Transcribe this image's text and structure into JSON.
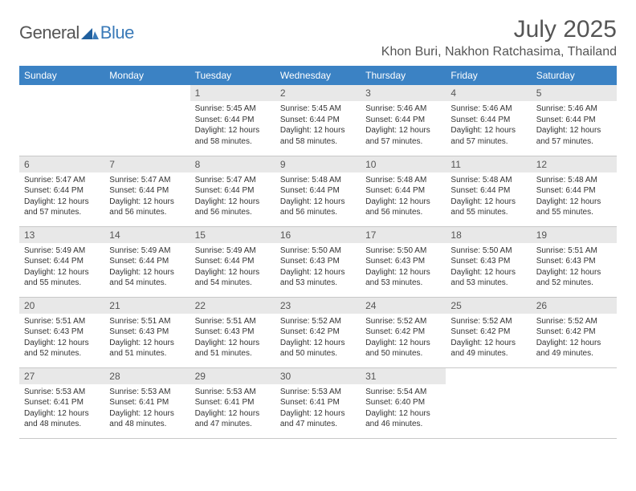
{
  "logo": {
    "general": "General",
    "blue": "Blue"
  },
  "title": "July 2025",
  "location": "Khon Buri, Nakhon Ratchasima, Thailand",
  "colors": {
    "header_bg": "#3b82c4",
    "header_text": "#ffffff",
    "daynum_bg": "#e8e8e8",
    "text": "#333333",
    "logo_blue": "#3a7ab8",
    "divider": "#c8c8c8"
  },
  "day_labels": [
    "Sunday",
    "Monday",
    "Tuesday",
    "Wednesday",
    "Thursday",
    "Friday",
    "Saturday"
  ],
  "weeks": [
    [
      null,
      null,
      {
        "n": "1",
        "sunrise": "Sunrise: 5:45 AM",
        "sunset": "Sunset: 6:44 PM",
        "day1": "Daylight: 12 hours",
        "day2": "and 58 minutes."
      },
      {
        "n": "2",
        "sunrise": "Sunrise: 5:45 AM",
        "sunset": "Sunset: 6:44 PM",
        "day1": "Daylight: 12 hours",
        "day2": "and 58 minutes."
      },
      {
        "n": "3",
        "sunrise": "Sunrise: 5:46 AM",
        "sunset": "Sunset: 6:44 PM",
        "day1": "Daylight: 12 hours",
        "day2": "and 57 minutes."
      },
      {
        "n": "4",
        "sunrise": "Sunrise: 5:46 AM",
        "sunset": "Sunset: 6:44 PM",
        "day1": "Daylight: 12 hours",
        "day2": "and 57 minutes."
      },
      {
        "n": "5",
        "sunrise": "Sunrise: 5:46 AM",
        "sunset": "Sunset: 6:44 PM",
        "day1": "Daylight: 12 hours",
        "day2": "and 57 minutes."
      }
    ],
    [
      {
        "n": "6",
        "sunrise": "Sunrise: 5:47 AM",
        "sunset": "Sunset: 6:44 PM",
        "day1": "Daylight: 12 hours",
        "day2": "and 57 minutes."
      },
      {
        "n": "7",
        "sunrise": "Sunrise: 5:47 AM",
        "sunset": "Sunset: 6:44 PM",
        "day1": "Daylight: 12 hours",
        "day2": "and 56 minutes."
      },
      {
        "n": "8",
        "sunrise": "Sunrise: 5:47 AM",
        "sunset": "Sunset: 6:44 PM",
        "day1": "Daylight: 12 hours",
        "day2": "and 56 minutes."
      },
      {
        "n": "9",
        "sunrise": "Sunrise: 5:48 AM",
        "sunset": "Sunset: 6:44 PM",
        "day1": "Daylight: 12 hours",
        "day2": "and 56 minutes."
      },
      {
        "n": "10",
        "sunrise": "Sunrise: 5:48 AM",
        "sunset": "Sunset: 6:44 PM",
        "day1": "Daylight: 12 hours",
        "day2": "and 56 minutes."
      },
      {
        "n": "11",
        "sunrise": "Sunrise: 5:48 AM",
        "sunset": "Sunset: 6:44 PM",
        "day1": "Daylight: 12 hours",
        "day2": "and 55 minutes."
      },
      {
        "n": "12",
        "sunrise": "Sunrise: 5:48 AM",
        "sunset": "Sunset: 6:44 PM",
        "day1": "Daylight: 12 hours",
        "day2": "and 55 minutes."
      }
    ],
    [
      {
        "n": "13",
        "sunrise": "Sunrise: 5:49 AM",
        "sunset": "Sunset: 6:44 PM",
        "day1": "Daylight: 12 hours",
        "day2": "and 55 minutes."
      },
      {
        "n": "14",
        "sunrise": "Sunrise: 5:49 AM",
        "sunset": "Sunset: 6:44 PM",
        "day1": "Daylight: 12 hours",
        "day2": "and 54 minutes."
      },
      {
        "n": "15",
        "sunrise": "Sunrise: 5:49 AM",
        "sunset": "Sunset: 6:44 PM",
        "day1": "Daylight: 12 hours",
        "day2": "and 54 minutes."
      },
      {
        "n": "16",
        "sunrise": "Sunrise: 5:50 AM",
        "sunset": "Sunset: 6:43 PM",
        "day1": "Daylight: 12 hours",
        "day2": "and 53 minutes."
      },
      {
        "n": "17",
        "sunrise": "Sunrise: 5:50 AM",
        "sunset": "Sunset: 6:43 PM",
        "day1": "Daylight: 12 hours",
        "day2": "and 53 minutes."
      },
      {
        "n": "18",
        "sunrise": "Sunrise: 5:50 AM",
        "sunset": "Sunset: 6:43 PM",
        "day1": "Daylight: 12 hours",
        "day2": "and 53 minutes."
      },
      {
        "n": "19",
        "sunrise": "Sunrise: 5:51 AM",
        "sunset": "Sunset: 6:43 PM",
        "day1": "Daylight: 12 hours",
        "day2": "and 52 minutes."
      }
    ],
    [
      {
        "n": "20",
        "sunrise": "Sunrise: 5:51 AM",
        "sunset": "Sunset: 6:43 PM",
        "day1": "Daylight: 12 hours",
        "day2": "and 52 minutes."
      },
      {
        "n": "21",
        "sunrise": "Sunrise: 5:51 AM",
        "sunset": "Sunset: 6:43 PM",
        "day1": "Daylight: 12 hours",
        "day2": "and 51 minutes."
      },
      {
        "n": "22",
        "sunrise": "Sunrise: 5:51 AM",
        "sunset": "Sunset: 6:43 PM",
        "day1": "Daylight: 12 hours",
        "day2": "and 51 minutes."
      },
      {
        "n": "23",
        "sunrise": "Sunrise: 5:52 AM",
        "sunset": "Sunset: 6:42 PM",
        "day1": "Daylight: 12 hours",
        "day2": "and 50 minutes."
      },
      {
        "n": "24",
        "sunrise": "Sunrise: 5:52 AM",
        "sunset": "Sunset: 6:42 PM",
        "day1": "Daylight: 12 hours",
        "day2": "and 50 minutes."
      },
      {
        "n": "25",
        "sunrise": "Sunrise: 5:52 AM",
        "sunset": "Sunset: 6:42 PM",
        "day1": "Daylight: 12 hours",
        "day2": "and 49 minutes."
      },
      {
        "n": "26",
        "sunrise": "Sunrise: 5:52 AM",
        "sunset": "Sunset: 6:42 PM",
        "day1": "Daylight: 12 hours",
        "day2": "and 49 minutes."
      }
    ],
    [
      {
        "n": "27",
        "sunrise": "Sunrise: 5:53 AM",
        "sunset": "Sunset: 6:41 PM",
        "day1": "Daylight: 12 hours",
        "day2": "and 48 minutes."
      },
      {
        "n": "28",
        "sunrise": "Sunrise: 5:53 AM",
        "sunset": "Sunset: 6:41 PM",
        "day1": "Daylight: 12 hours",
        "day2": "and 48 minutes."
      },
      {
        "n": "29",
        "sunrise": "Sunrise: 5:53 AM",
        "sunset": "Sunset: 6:41 PM",
        "day1": "Daylight: 12 hours",
        "day2": "and 47 minutes."
      },
      {
        "n": "30",
        "sunrise": "Sunrise: 5:53 AM",
        "sunset": "Sunset: 6:41 PM",
        "day1": "Daylight: 12 hours",
        "day2": "and 47 minutes."
      },
      {
        "n": "31",
        "sunrise": "Sunrise: 5:54 AM",
        "sunset": "Sunset: 6:40 PM",
        "day1": "Daylight: 12 hours",
        "day2": "and 46 minutes."
      },
      null,
      null
    ]
  ]
}
